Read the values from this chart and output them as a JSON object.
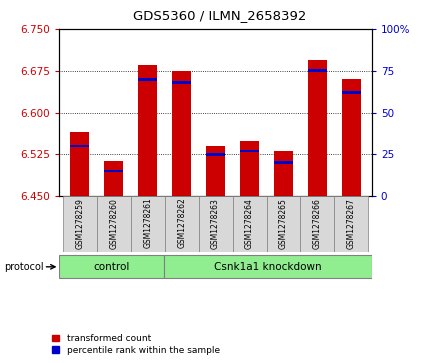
{
  "title": "GDS5360 / ILMN_2658392",
  "samples": [
    "GSM1278259",
    "GSM1278260",
    "GSM1278261",
    "GSM1278262",
    "GSM1278263",
    "GSM1278264",
    "GSM1278265",
    "GSM1278266",
    "GSM1278267"
  ],
  "transformed_count": [
    6.565,
    6.513,
    6.685,
    6.675,
    6.54,
    6.548,
    6.53,
    6.695,
    6.66
  ],
  "percentile_rank": [
    30,
    15,
    70,
    68,
    25,
    27,
    20,
    75,
    62
  ],
  "ylim_left": [
    6.45,
    6.75
  ],
  "ylim_right": [
    0,
    100
  ],
  "yticks_left": [
    6.45,
    6.525,
    6.6,
    6.675,
    6.75
  ],
  "yticks_right": [
    0,
    25,
    50,
    75,
    100
  ],
  "baseline": 6.45,
  "bar_color": "#cc0000",
  "percentile_color": "#0000cc",
  "control_samples": 3,
  "knockdown_samples": 6,
  "control_label": "control",
  "knockdown_label": "Csnk1a1 knockdown",
  "protocol_label": "protocol",
  "legend_red": "transformed count",
  "legend_blue": "percentile rank within the sample",
  "group_color": "#90ee90",
  "tick_label_color_left": "#cc0000",
  "tick_label_color_right": "#0000cc",
  "bar_width": 0.55
}
